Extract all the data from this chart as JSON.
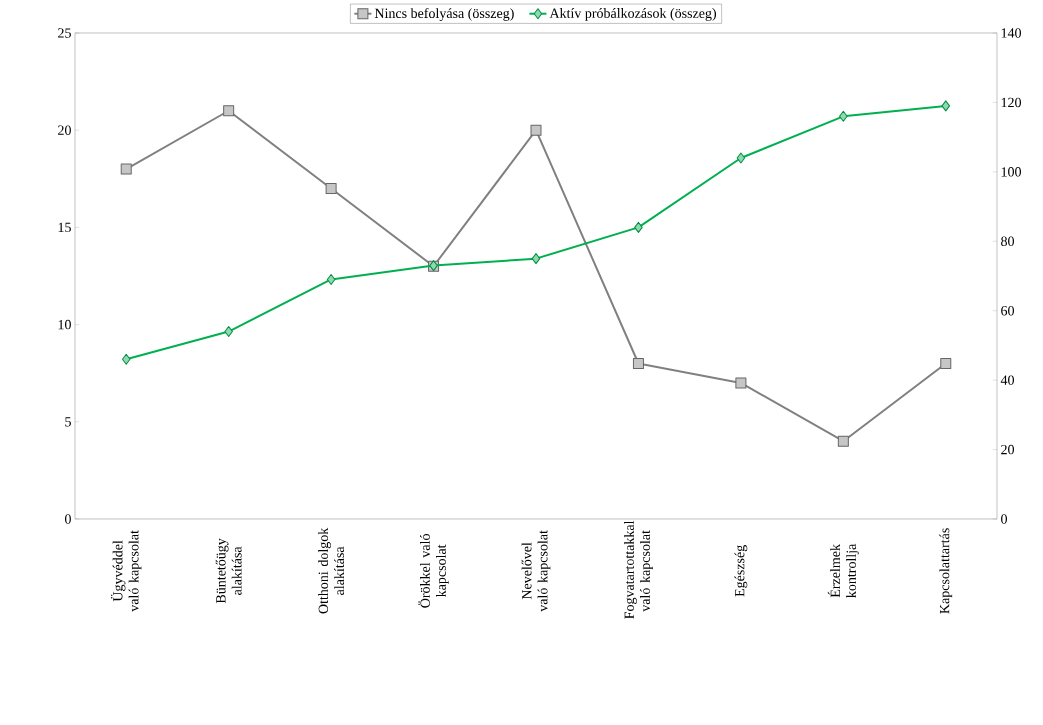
{
  "chart_data": {
    "type": "line",
    "categories": [
      "Ügyvéddel való kapcsolat",
      "Büntetőügy alakítása",
      "Otthoni dolgok alakítása",
      "Örökkel való kapcsolat",
      "Nevelővel való kapcsolat",
      "Fogvatartottakkal való kapcsolat",
      "Egészség",
      "Érzelmek kontrollja",
      "Kapcsolattartás"
    ],
    "series": [
      {
        "name": "Nincs befolyása (összeg)",
        "color": "#808080",
        "marker": "square",
        "values": [
          18,
          21,
          17,
          13,
          20,
          8,
          7,
          4,
          8
        ]
      },
      {
        "name": "Aktív próbálkozások (összeg)",
        "color": "#00b050",
        "marker": "diamond",
        "axis": "y2",
        "values": [
          46,
          54,
          69,
          73,
          75,
          84,
          104,
          116,
          119
        ]
      }
    ],
    "ylim": [
      0,
      25
    ],
    "yticks": [
      0,
      5,
      10,
      15,
      20,
      25
    ],
    "y2lim": [
      0,
      140
    ],
    "y2ticks": [
      0,
      20,
      40,
      60,
      80,
      100,
      120,
      140
    ],
    "legend": "top",
    "grid": false
  }
}
